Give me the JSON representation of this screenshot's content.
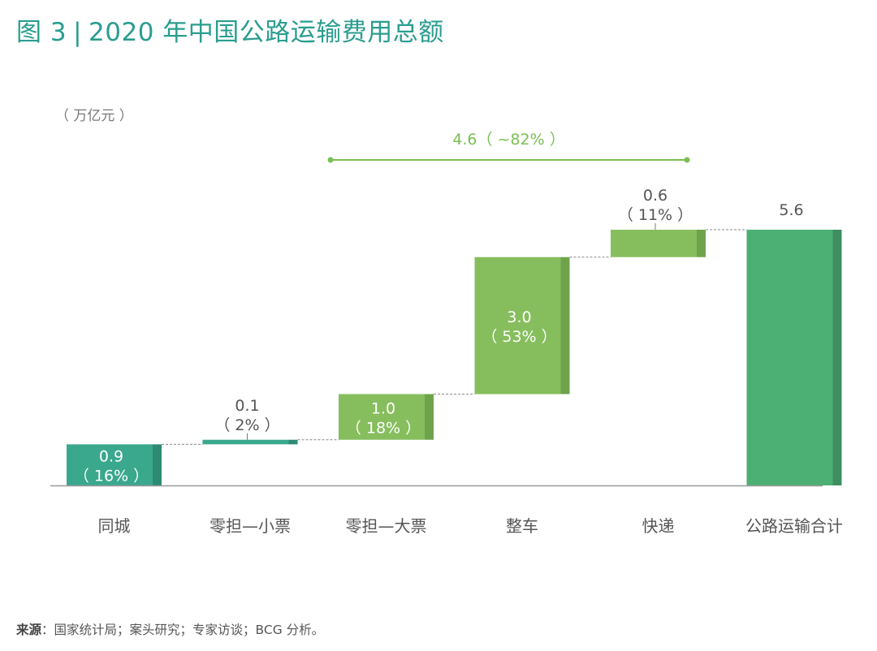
{
  "title": {
    "prefix": "图 3",
    "separator": "|",
    "text": "2020 年中国公路运输费用总额"
  },
  "source": {
    "label": "来源",
    "colon": "：",
    "text": "国家统计局；案头研究；专家访谈；BCG 分析。"
  },
  "colors": {
    "teal": "#3aa88c",
    "teal_side": "#2e8a73",
    "lightgreen": "#86be5e",
    "lightgreen_side": "#6ea34b",
    "total": "#4caf74",
    "total_side": "#3d8f5f",
    "bracket": "#7bbf53",
    "axis": "#999999",
    "connector": "#888888"
  },
  "chart_data": {
    "type": "bar",
    "subtype": "waterfall",
    "unit_label": "（ 万亿元 ）",
    "categories": [
      "同城",
      "零担—小票",
      "零担—大票",
      "整车",
      "快递",
      "公路运输合计"
    ],
    "values": [
      0.9,
      0.1,
      1.0,
      3.0,
      0.6,
      5.6
    ],
    "value_labels": [
      "0.9",
      "0.1",
      "1.0",
      "3.0",
      "0.6",
      "5.6"
    ],
    "share_labels": [
      "（ 16% ）",
      "（ 2% ）",
      "（ 18% ）",
      "（ 53% ）",
      "（ 11% ）",
      ""
    ],
    "bar_kinds": [
      "teal",
      "teal",
      "lightgreen",
      "lightgreen",
      "lightgreen",
      "total"
    ],
    "label_positions": [
      "inside",
      "above",
      "inside",
      "inside",
      "above",
      "above"
    ],
    "is_total": [
      false,
      false,
      false,
      false,
      false,
      true
    ],
    "bracket": {
      "label": "4.6（ ~82% ）",
      "from_category": 2,
      "to_category": 4
    },
    "ylim": [
      0,
      5.6
    ]
  }
}
